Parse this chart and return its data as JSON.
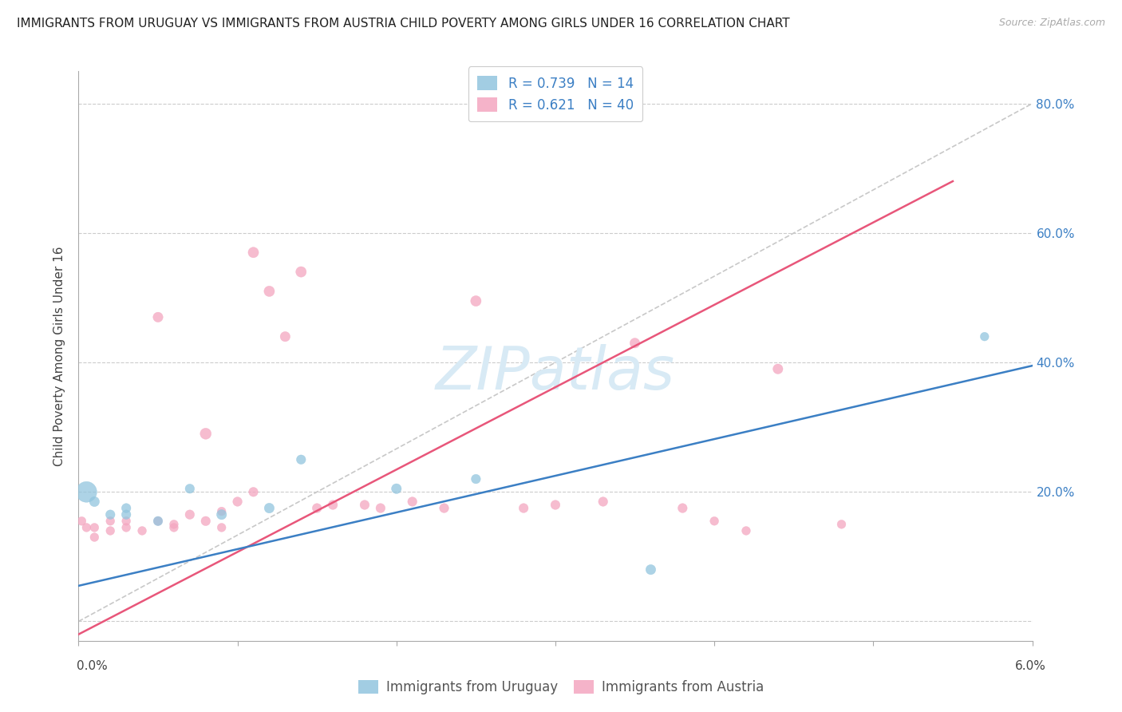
{
  "title": "IMMIGRANTS FROM URUGUAY VS IMMIGRANTS FROM AUSTRIA CHILD POVERTY AMONG GIRLS UNDER 16 CORRELATION CHART",
  "source": "Source: ZipAtlas.com",
  "ylabel": "Child Poverty Among Girls Under 16",
  "watermark": "ZIPatlas",
  "xlim": [
    0.0,
    0.06
  ],
  "ylim": [
    -0.03,
    0.85
  ],
  "ytick_vals": [
    0.0,
    0.2,
    0.4,
    0.6,
    0.8
  ],
  "ytick_labels": [
    "",
    "20.0%",
    "40.0%",
    "60.0%",
    "80.0%"
  ],
  "uruguay_R": 0.739,
  "uruguay_N": 14,
  "austria_R": 0.621,
  "austria_N": 40,
  "uruguay_color": "#92c5de",
  "austria_color": "#f4a6c0",
  "uruguay_line_color": "#3b7fc4",
  "austria_line_color": "#e8567a",
  "diagonal_color": "#c8c8c8",
  "uruguay_line": [
    0.0,
    0.06,
    0.055,
    0.395
  ],
  "austria_line": [
    0.0,
    0.055,
    -0.02,
    0.68
  ],
  "diag_line": [
    0.0,
    0.06,
    0.0,
    0.8
  ],
  "uruguay_scatter_x": [
    0.0005,
    0.001,
    0.002,
    0.003,
    0.003,
    0.005,
    0.007,
    0.009,
    0.012,
    0.014,
    0.02,
    0.025,
    0.036,
    0.057
  ],
  "uruguay_scatter_y": [
    0.2,
    0.185,
    0.165,
    0.165,
    0.175,
    0.155,
    0.205,
    0.165,
    0.175,
    0.25,
    0.205,
    0.22,
    0.08,
    0.44
  ],
  "uruguay_scatter_size": [
    350,
    80,
    70,
    70,
    70,
    70,
    70,
    80,
    80,
    70,
    80,
    70,
    80,
    60
  ],
  "austria_scatter_x": [
    0.0002,
    0.0005,
    0.001,
    0.001,
    0.002,
    0.002,
    0.003,
    0.003,
    0.004,
    0.005,
    0.005,
    0.006,
    0.006,
    0.007,
    0.008,
    0.008,
    0.009,
    0.009,
    0.01,
    0.011,
    0.011,
    0.012,
    0.013,
    0.014,
    0.015,
    0.016,
    0.018,
    0.019,
    0.021,
    0.023,
    0.025,
    0.028,
    0.03,
    0.033,
    0.035,
    0.038,
    0.04,
    0.042,
    0.044,
    0.048
  ],
  "austria_scatter_y": [
    0.155,
    0.145,
    0.13,
    0.145,
    0.14,
    0.155,
    0.145,
    0.155,
    0.14,
    0.155,
    0.47,
    0.145,
    0.15,
    0.165,
    0.29,
    0.155,
    0.145,
    0.17,
    0.185,
    0.2,
    0.57,
    0.51,
    0.44,
    0.54,
    0.175,
    0.18,
    0.18,
    0.175,
    0.185,
    0.175,
    0.495,
    0.175,
    0.18,
    0.185,
    0.43,
    0.175,
    0.155,
    0.14,
    0.39,
    0.15
  ],
  "austria_scatter_size": [
    60,
    60,
    60,
    60,
    60,
    60,
    60,
    60,
    60,
    60,
    80,
    60,
    60,
    70,
    100,
    70,
    60,
    60,
    70,
    70,
    90,
    90,
    80,
    90,
    70,
    70,
    70,
    70,
    70,
    70,
    90,
    70,
    70,
    70,
    80,
    70,
    60,
    60,
    80,
    60
  ],
  "title_fontsize": 11,
  "axis_label_fontsize": 11,
  "tick_fontsize": 11,
  "legend_fontsize": 12,
  "source_fontsize": 9
}
